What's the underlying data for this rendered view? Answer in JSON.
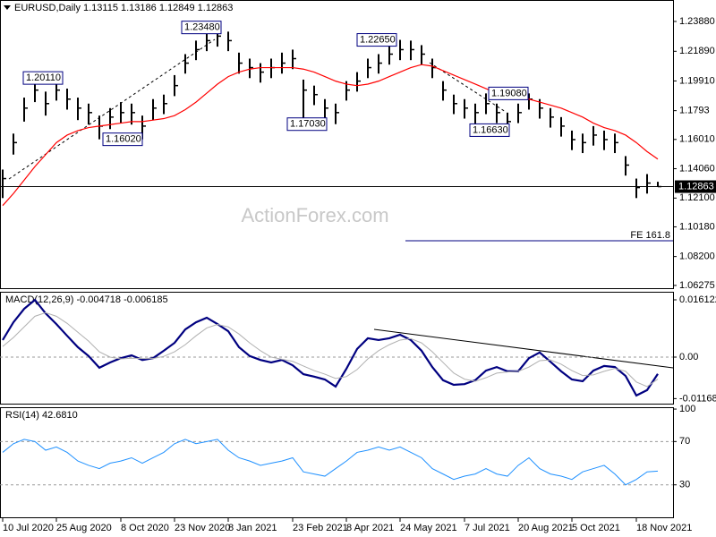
{
  "chart_data": [
    {
      "type": "ohlc",
      "title": "EURUSD,Daily  1.13115 1.13186 1.12849 1.12863",
      "watermark": "ActionForex.com",
      "bar_color": "#000000",
      "categories": [
        "10 Jul 2020",
        null,
        null,
        null,
        null,
        "25 Aug 2020",
        null,
        null,
        null,
        null,
        null,
        "8 Oct 2020",
        null,
        null,
        null,
        null,
        "23 Nov 2020",
        null,
        null,
        null,
        null,
        "8 Jan 2021",
        null,
        null,
        null,
        null,
        null,
        "23 Feb 2021",
        null,
        null,
        null,
        null,
        "8 Apr 2021",
        null,
        null,
        null,
        null,
        "24 May 2021",
        null,
        null,
        null,
        null,
        null,
        "7 Jul 2021",
        null,
        null,
        null,
        null,
        "20 Aug 2021",
        null,
        null,
        null,
        null,
        "5 Oct 2021",
        null,
        null,
        null,
        null,
        null,
        "18 Nov 2021",
        null,
        null
      ],
      "high": [
        1.14,
        1.164,
        1.188,
        1.201,
        1.192,
        1.199,
        1.194,
        1.188,
        1.184,
        1.176,
        1.181,
        1.185,
        1.184,
        1.176,
        1.187,
        1.19,
        1.203,
        1.217,
        1.226,
        1.232,
        1.2348,
        1.232,
        1.218,
        1.214,
        1.211,
        1.214,
        1.218,
        1.22,
        1.2,
        1.196,
        1.187,
        1.184,
        1.199,
        1.205,
        1.214,
        1.217,
        1.223,
        1.2265,
        1.226,
        1.223,
        1.214,
        1.199,
        1.19,
        1.187,
        1.184,
        1.1908,
        1.184,
        1.178,
        1.184,
        1.1908,
        1.187,
        1.181,
        1.175,
        1.166,
        1.164,
        1.169,
        1.166,
        1.164,
        1.149,
        1.134,
        1.137,
        1.13186
      ],
      "low": [
        1.121,
        1.15,
        1.172,
        1.185,
        1.176,
        1.186,
        1.18,
        1.173,
        1.17,
        1.1602,
        1.167,
        1.171,
        1.17,
        1.1602,
        1.173,
        1.177,
        1.189,
        1.204,
        1.213,
        1.219,
        1.222,
        1.219,
        1.204,
        1.201,
        1.198,
        1.201,
        1.204,
        1.207,
        1.1703,
        1.183,
        1.174,
        1.1703,
        1.186,
        1.192,
        1.201,
        1.204,
        1.21,
        1.213,
        1.213,
        1.21,
        1.201,
        1.186,
        1.177,
        1.174,
        1.1663,
        1.177,
        1.171,
        1.1663,
        1.171,
        1.18,
        1.174,
        1.168,
        1.162,
        1.153,
        1.151,
        1.156,
        1.153,
        1.151,
        1.136,
        1.121,
        1.124,
        1.12849
      ],
      "close": [
        1.134,
        1.158,
        1.181,
        1.193,
        1.184,
        1.193,
        1.187,
        1.181,
        1.178,
        1.169,
        1.175,
        1.178,
        1.178,
        1.169,
        1.181,
        1.184,
        1.196,
        1.211,
        1.22,
        1.226,
        1.229,
        1.226,
        1.211,
        1.208,
        1.205,
        1.208,
        1.211,
        1.214,
        1.193,
        1.19,
        1.181,
        1.178,
        1.193,
        1.199,
        1.208,
        1.211,
        1.217,
        1.22,
        1.22,
        1.217,
        1.208,
        1.193,
        1.184,
        1.181,
        1.178,
        1.184,
        1.178,
        1.172,
        1.178,
        1.187,
        1.181,
        1.175,
        1.169,
        1.16,
        1.158,
        1.163,
        1.16,
        1.158,
        1.143,
        1.128,
        1.131,
        1.12863
      ],
      "ma_color": "#ff0000",
      "ma_values": [
        1.116,
        1.124,
        1.133,
        1.142,
        1.15,
        1.158,
        1.163,
        1.166,
        1.168,
        1.169,
        1.17,
        1.171,
        1.172,
        1.172,
        1.173,
        1.174,
        1.176,
        1.18,
        1.185,
        1.191,
        1.197,
        1.202,
        1.205,
        1.207,
        1.208,
        1.208,
        1.208,
        1.208,
        1.207,
        1.205,
        1.202,
        1.199,
        1.197,
        1.196,
        1.197,
        1.199,
        1.202,
        1.205,
        1.208,
        1.21,
        1.209,
        1.206,
        1.203,
        1.2,
        1.197,
        1.194,
        1.191,
        1.189,
        1.188,
        1.187,
        1.185,
        1.183,
        1.181,
        1.178,
        1.175,
        1.171,
        1.168,
        1.166,
        1.163,
        1.158,
        1.152,
        1.147
      ],
      "ylim": [
        1.0609,
        1.2531
      ],
      "yticks": [
        {
          "value": 1.2388,
          "label": "1.23880"
        },
        {
          "value": 1.2189,
          "label": "1.21890"
        },
        {
          "value": 1.1991,
          "label": "1.19910"
        },
        1.1793,
        {
          "value": 1.1601,
          "label": "1.16010"
        },
        {
          "value": 1.1406,
          "label": "1.14060"
        },
        {
          "value": 1.121,
          "label": "1.12100"
        },
        {
          "value": 1.1018,
          "label": "1.10180"
        },
        {
          "value": 1.082,
          "label": "1.08200"
        },
        1.06275
      ],
      "last_price": 1.12863,
      "annotations": [
        {
          "value": 1.2011,
          "label": "1.20110"
        },
        {
          "value": 1.1602,
          "label": "1.16020"
        },
        {
          "value": 1.2348,
          "label": "1.23480"
        },
        {
          "value": 1.1703,
          "label": "1.17030"
        },
        {
          "value": 1.2265,
          "label": "1.22650"
        },
        {
          "value": 1.1663,
          "label": "1.16630"
        },
        {
          "value": 1.1908,
          "label": "1.19080"
        }
      ],
      "fe_level": {
        "value": 1.0925,
        "label": "FE 161.8"
      }
    },
    {
      "type": "line",
      "title": "MACD(12,26,9) -0.004718 -0.006185",
      "series": [
        {
          "color": "#000080",
          "values": [
            0.0048,
            0.0098,
            0.0136,
            0.0161,
            0.0123,
            0.0093,
            0.006,
            0.0028,
            0.0003,
            -0.003,
            -0.0015,
            -0.0003,
            0.0005,
            -0.0008,
            -0.0003,
            0.0018,
            0.004,
            0.0078,
            0.0098,
            0.0111,
            0.0093,
            0.0073,
            0.0028,
            0.0003,
            -0.0008,
            -0.0015,
            -0.0008,
            -0.0023,
            -0.0048,
            -0.0055,
            -0.0063,
            -0.0083,
            -0.0033,
            0.0023,
            0.0053,
            0.0048,
            0.0053,
            0.0063,
            0.0048,
            0.0018,
            -0.0028,
            -0.0065,
            -0.0078,
            -0.0076,
            -0.0065,
            -0.0038,
            -0.0028,
            -0.004,
            -0.004,
            -0.0003,
            0.0013,
            -0.0013,
            -0.004,
            -0.0063,
            -0.0068,
            -0.0038,
            -0.0025,
            -0.0028,
            -0.0053,
            -0.0108,
            -0.0093,
            -0.004718
          ]
        },
        {
          "color": "#b0b0b0",
          "values": [
            0.003,
            0.0055,
            0.0085,
            0.0115,
            0.0125,
            0.0115,
            0.0095,
            0.007,
            0.0045,
            0.0015,
            0.0,
            -0.0005,
            -0.0003,
            -0.0004,
            -0.0004,
            0.0002,
            0.0015,
            0.0035,
            0.006,
            0.0082,
            0.0092,
            0.0085,
            0.0065,
            0.004,
            0.0018,
            0.0,
            -0.0006,
            -0.0012,
            -0.0025,
            -0.0038,
            -0.0048,
            -0.006,
            -0.0055,
            -0.0035,
            -0.0005,
            0.0018,
            0.0035,
            0.0048,
            0.0052,
            0.004,
            0.0015,
            -0.0015,
            -0.0045,
            -0.0062,
            -0.0068,
            -0.0058,
            -0.0045,
            -0.0042,
            -0.004,
            -0.0028,
            -0.001,
            -0.0008,
            -0.002,
            -0.0038,
            -0.0052,
            -0.005,
            -0.004,
            -0.0032,
            -0.004,
            -0.007,
            -0.0083,
            -0.006185
          ]
        }
      ],
      "ylim": [
        -0.0131,
        0.01839
      ],
      "yticks": [
        0.016122,
        {
          "value": 0,
          "label": "0.00"
        },
        -0.011681
      ],
      "levels": [
        0
      ]
    },
    {
      "type": "line",
      "title": "RSI(14) 42.6810",
      "series": [
        {
          "color": "#1e90ff",
          "values": [
            60,
            68,
            72,
            70,
            62,
            65,
            60,
            52,
            48,
            45,
            50,
            52,
            55,
            50,
            55,
            60,
            68,
            72,
            68,
            70,
            72,
            62,
            55,
            52,
            48,
            50,
            52,
            55,
            42,
            40,
            38,
            45,
            52,
            60,
            62,
            65,
            62,
            65,
            60,
            55,
            45,
            40,
            35,
            38,
            40,
            45,
            40,
            38,
            48,
            55,
            45,
            40,
            38,
            35,
            42,
            45,
            48,
            40,
            30,
            35,
            42,
            42.681
          ]
        }
      ],
      "ylim": [
        0,
        101.7
      ],
      "yticks": [
        100,
        70,
        30
      ],
      "levels": [
        70,
        30
      ]
    }
  ]
}
